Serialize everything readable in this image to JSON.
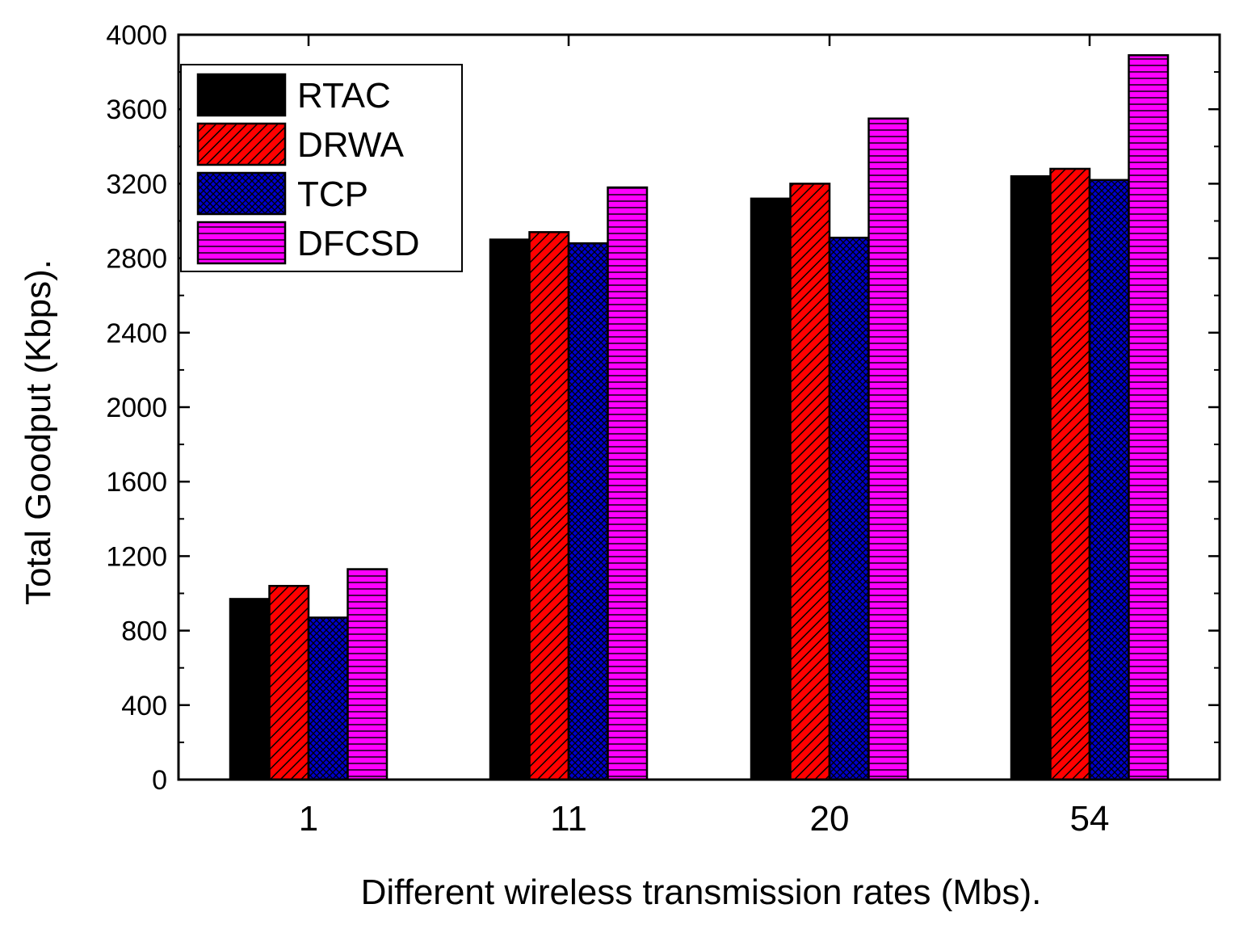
{
  "chart_data": {
    "type": "bar",
    "title": "",
    "xlabel": "Different wireless transmission rates (Mbs).",
    "ylabel": "Total Goodput (Kbps).",
    "categories": [
      "1",
      "11",
      "20",
      "54"
    ],
    "ylim": [
      0,
      4000
    ],
    "yticks": [
      "0",
      "400",
      "800",
      "1200",
      "1600",
      "2000",
      "2400",
      "2800",
      "3200",
      "3600",
      "4000"
    ],
    "grid": false,
    "legend_position": "top-left",
    "series": [
      {
        "name": "RTAC",
        "values": [
          970,
          2900,
          3120,
          3240
        ],
        "color": "#000000",
        "pattern": "solid"
      },
      {
        "name": "DRWA",
        "values": [
          1040,
          2940,
          3200,
          3280
        ],
        "color": "#ff0000",
        "pattern": "diagonal"
      },
      {
        "name": "TCP",
        "values": [
          870,
          2880,
          2910,
          3220
        ],
        "color": "#0000cc",
        "pattern": "crosshatch"
      },
      {
        "name": "DFCSD",
        "values": [
          1130,
          3180,
          3550,
          3890
        ],
        "color": "#ff00ff",
        "pattern": "horizontal"
      }
    ]
  }
}
